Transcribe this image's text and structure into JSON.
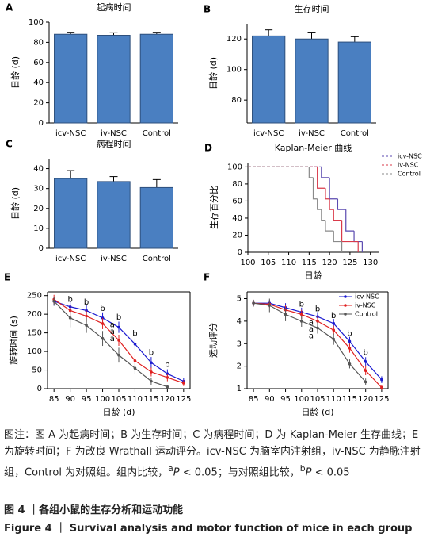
{
  "chart_data": [
    {
      "type": "bar",
      "panel": "A",
      "title": "起病时间",
      "ylabel": "日龄 (d)",
      "categories": [
        "icv-NSC",
        "iv-NSC",
        "Control"
      ],
      "values": [
        88,
        87,
        88
      ],
      "errors": [
        2,
        2.5,
        2
      ],
      "color": "#4a7fc1",
      "ylim": [
        0,
        100
      ],
      "yticks": [
        0,
        20,
        40,
        60,
        80,
        100
      ]
    },
    {
      "type": "bar",
      "panel": "B",
      "title": "生存时间",
      "ylabel": "日龄 (d)",
      "categories": [
        "icv-NSC",
        "iv-NSC",
        "Control"
      ],
      "values": [
        122,
        120,
        118
      ],
      "errors": [
        4,
        4.5,
        3.5
      ],
      "color": "#4a7fc1",
      "ylim": [
        65,
        130
      ],
      "yticks": [
        80,
        100,
        120
      ]
    },
    {
      "type": "bar",
      "panel": "C",
      "title": "病程时间",
      "ylabel": "日龄 (d)",
      "categories": [
        "icv-NSC",
        "iv-NSC",
        "Control"
      ],
      "values": [
        35,
        33.5,
        30.5
      ],
      "errors": [
        4,
        2.5,
        4
      ],
      "color": "#4a7fc1",
      "ylim": [
        0,
        45
      ],
      "yticks": [
        0,
        10,
        20,
        30,
        40
      ]
    },
    {
      "type": "step",
      "panel": "D",
      "title": "Kaplan-Meier 曲线",
      "xlabel": "日龄",
      "ylabel": "生存百分比",
      "xlim": [
        100,
        132
      ],
      "xticks": [
        100,
        105,
        110,
        115,
        120,
        125,
        130
      ],
      "ylim": [
        0,
        105
      ],
      "yticks": [
        0,
        20,
        40,
        60,
        80,
        100
      ],
      "legend": "outside upper right",
      "series": [
        {
          "name": "icv-NSC",
          "color": "#5b4ab0",
          "x": [
            100,
            118,
            120,
            122,
            124,
            126,
            128
          ],
          "values": [
            100,
            87.5,
            62.5,
            50,
            25,
            12.5,
            0
          ]
        },
        {
          "name": "iv-NSC",
          "color": "#d93a4a",
          "x": [
            100,
            117,
            119,
            120,
            121,
            123,
            127
          ],
          "values": [
            100,
            75,
            62.5,
            50,
            37.5,
            12.5,
            0
          ]
        },
        {
          "name": "Control",
          "color": "#8a8a8a",
          "x": [
            100,
            115,
            116,
            117,
            118,
            119,
            121,
            123
          ],
          "values": [
            100,
            87.5,
            62.5,
            50,
            37.5,
            25,
            12.5,
            0
          ]
        }
      ]
    },
    {
      "type": "line",
      "panel": "E",
      "xlabel": "日龄 (d)",
      "ylabel": "旋转时间 (s)",
      "x": [
        85,
        90,
        95,
        100,
        105,
        110,
        115,
        120,
        125
      ],
      "xlim": [
        83,
        127
      ],
      "xticks": [
        85,
        90,
        95,
        100,
        105,
        110,
        115,
        120,
        125
      ],
      "ylim": [
        0,
        260
      ],
      "yticks": [
        0,
        50,
        100,
        150,
        200,
        250
      ],
      "series": [
        {
          "name": "icv-NSC",
          "color": "#1a1ad0",
          "values": [
            235,
            220,
            210,
            190,
            165,
            120,
            70,
            40,
            20
          ],
          "errors": [
            12,
            15,
            15,
            15,
            15,
            15,
            15,
            12,
            8
          ]
        },
        {
          "name": "iv-NSC",
          "color": "#e02020",
          "values": [
            240,
            210,
            195,
            175,
            130,
            75,
            45,
            30,
            15
          ],
          "errors": [
            12,
            15,
            15,
            15,
            15,
            15,
            12,
            10,
            8
          ]
        },
        {
          "name": "Control",
          "color": "#555555",
          "values": [
            235,
            190,
            170,
            135,
            90,
            55,
            20,
            5,
            null
          ],
          "errors": [
            12,
            25,
            20,
            20,
            20,
            15,
            10,
            5,
            null
          ]
        }
      ],
      "annotations": [
        {
          "text": "b",
          "x": 90,
          "y": 240
        },
        {
          "text": "b",
          "x": 95,
          "y": 232
        },
        {
          "text": "b",
          "x": 100,
          "y": 215
        },
        {
          "text": "b",
          "x": 105,
          "y": 192
        },
        {
          "text": "b",
          "x": 110,
          "y": 148
        },
        {
          "text": "b",
          "x": 115,
          "y": 97
        },
        {
          "text": "b",
          "x": 120,
          "y": 65
        },
        {
          "text": "a",
          "x": 103,
          "y": 172
        },
        {
          "text": "a",
          "x": 103,
          "y": 153
        },
        {
          "text": "a",
          "x": 103,
          "y": 134
        }
      ]
    },
    {
      "type": "line",
      "panel": "F",
      "xlabel": "日龄 (d)",
      "ylabel": "运动评分",
      "x": [
        85,
        90,
        95,
        100,
        105,
        110,
        115,
        120,
        125
      ],
      "xlim": [
        83,
        127
      ],
      "xticks": [
        85,
        90,
        95,
        100,
        105,
        110,
        115,
        120,
        125
      ],
      "ylim": [
        1,
        5.3
      ],
      "yticks": [
        1,
        2,
        3,
        4,
        5
      ],
      "legend": "upper right",
      "series": [
        {
          "name": "icv-NSC",
          "color": "#1a1ad0",
          "values": [
            4.8,
            4.8,
            4.6,
            4.4,
            4.2,
            3.9,
            3.1,
            2.2,
            1.4
          ],
          "errors": [
            0.15,
            0.15,
            0.2,
            0.2,
            0.2,
            0.2,
            0.2,
            0.2,
            0.15
          ]
        },
        {
          "name": "iv-NSC",
          "color": "#e02020",
          "values": [
            4.8,
            4.75,
            4.5,
            4.3,
            4.0,
            3.6,
            2.8,
            1.8,
            1.05
          ],
          "errors": [
            0.15,
            0.15,
            0.2,
            0.2,
            0.2,
            0.2,
            0.2,
            0.2,
            0.1
          ]
        },
        {
          "name": "Control",
          "color": "#555555",
          "values": [
            4.8,
            4.7,
            4.3,
            4.0,
            3.7,
            3.2,
            2.1,
            1.3,
            null
          ],
          "errors": [
            0.15,
            0.3,
            0.3,
            0.25,
            0.25,
            0.25,
            0.2,
            0.15,
            null
          ]
        }
      ],
      "annotations": [
        {
          "text": "b",
          "x": 100,
          "y": 4.75
        },
        {
          "text": "b",
          "x": 105,
          "y": 4.55
        },
        {
          "text": "b",
          "x": 110,
          "y": 4.25
        },
        {
          "text": "b",
          "x": 115,
          "y": 3.45
        },
        {
          "text": "b",
          "x": 120,
          "y": 2.6
        },
        {
          "text": "a",
          "x": 103,
          "y": 3.95
        },
        {
          "text": "a",
          "x": 103,
          "y": 3.65
        },
        {
          "text": "a",
          "x": 103,
          "y": 3.35
        }
      ]
    }
  ],
  "caption": {
    "note": [
      "图注：图 A 为起病时间；B 为生存时间；C 为病程时间；D 为 Kaplan-Meier 生存曲线；E 为旋转时间；F 为改良 Wrathall 运动评分。icv-NSC 为脑室内注射组，iv-NSC 为静脉注射组，Control 为对照组。组内比较，",
      "a",
      "P",
      " < 0.05；与对照组比较，",
      "b",
      "P",
      " < 0.05"
    ],
    "figure_cn": "图 4 ｜各组小鼠的生存分析和运动功能",
    "figure_en": "Figure 4 ｜ Survival analysis and motor function of mice in each group"
  }
}
